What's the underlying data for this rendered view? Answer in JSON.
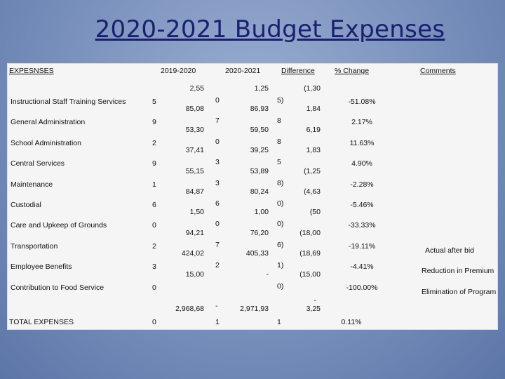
{
  "title": "2020-2021 Budget Expenses",
  "headers": {
    "expenses": "EXPESNSES",
    "y2019": "2019-2020",
    "y2020": "2020-2021",
    "difference": "Difference",
    "pct": "% Change",
    "comments": "Comments"
  },
  "rows": [
    {
      "label": "Instructional Staff Training Services",
      "a1": "2,55",
      "a2": "5",
      "b1": "1,25",
      "b2": "0",
      "d1": "(1,30",
      "d2": "5)",
      "pct": "-51.08%",
      "comment": ""
    },
    {
      "label": "General Administration",
      "a1": "85,08",
      "a2": "9",
      "b1": "86,93",
      "b2": "7",
      "d1": "1,84",
      "d2": "8",
      "pct": "2.17%",
      "comment": ""
    },
    {
      "label": "School Administration",
      "a1": "53,30",
      "a2": "2",
      "b1": "59,50",
      "b2": "0",
      "d1": "6,19",
      "d2": "8",
      "pct": "11.63%",
      "comment": ""
    },
    {
      "label": "Central Services",
      "a1": "37,41",
      "a2": "9",
      "b1": "39,25",
      "b2": "3",
      "d1": "1,83",
      "d2": "5",
      "pct": "4.90%",
      "comment": ""
    },
    {
      "label": "Maintenance",
      "a1": "55,15",
      "a2": "1",
      "b1": "53,89",
      "b2": "3",
      "d1": "(1,25",
      "d2": "8)",
      "pct": "-2.28%",
      "comment": ""
    },
    {
      "label": "Custodial",
      "a1": "84,87",
      "a2": "6",
      "b1": "80,24",
      "b2": "6",
      "d1": "(4,63",
      "d2": "0)",
      "pct": "-5.46%",
      "comment": ""
    },
    {
      "label": "Care and Upkeep of Grounds",
      "a1": "1,50",
      "a2": "0",
      "b1": "1,00",
      "b2": "0",
      "d1": "(50",
      "d2": "0)",
      "pct": "-33.33%",
      "comment": ""
    },
    {
      "label": "Transportation",
      "a1": "94,21",
      "a2": "2",
      "b1": "76,20",
      "b2": "7",
      "d1": "(18,00",
      "d2": "6)",
      "pct": "-19.11%",
      "comment": "Actual after bid"
    },
    {
      "label": "Employee Benefits",
      "a1": "424,02",
      "a2": "3",
      "b1": "405,33",
      "b2": "2",
      "d1": "(18,69",
      "d2": "1)",
      "pct": "-4.41%",
      "comment": "Reduction in Premium"
    },
    {
      "label": "Contribution to Food Service",
      "a1": "15,00",
      "a2": "0",
      "b1": "-",
      "b2": "",
      "d1": "(15,00",
      "d2": "0)",
      "pct": "-100.00%",
      "comment": "Elimination of Program"
    }
  ],
  "total": {
    "label": "TOTAL EXPENSES",
    "a1": "2,968,68",
    "a2": "0",
    "b0": "-",
    "b1": "2,971,93",
    "b2": "1",
    "d0": "-",
    "d1": "3,25",
    "d2": "1",
    "pct": "0.11%"
  }
}
